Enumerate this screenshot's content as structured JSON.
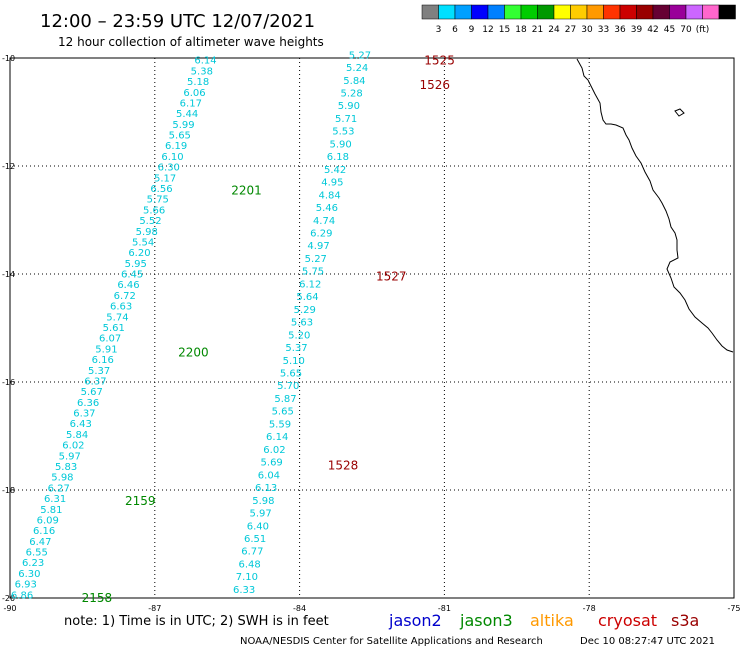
{
  "header": {
    "title": "12:00 – 23:59 UTC 12/07/2021",
    "subtitle": "12 hour collection of altimeter wave heights"
  },
  "legend": {
    "colors": [
      "#808080",
      "#00e0ff",
      "#00a0ff",
      "#0000ff",
      "#0080ff",
      "#33ff33",
      "#00cc00",
      "#009900",
      "#ffff00",
      "#ffcc00",
      "#ff9900",
      "#ff3300",
      "#cc0000",
      "#990000",
      "#660033",
      "#990099",
      "#cc66ff",
      "#ff66cc",
      "#000000"
    ],
    "labels": [
      "3",
      "6",
      "9",
      "12",
      "15",
      "18",
      "21",
      "24",
      "27",
      "30",
      "33",
      "36",
      "39",
      "42",
      "45",
      "70",
      "(ft)"
    ]
  },
  "footer": {
    "note": "note:  1) Time is in UTC;  2) SWH is in feet",
    "missions": [
      {
        "name": "jason2",
        "color": "#0000cc"
      },
      {
        "name": "jason3",
        "color": "#008800"
      },
      {
        "name": "altika",
        "color": "#ff9900"
      },
      {
        "name": "cryosat",
        "color": "#cc0000"
      },
      {
        "name": "s3a",
        "color": "#990000"
      }
    ],
    "credit": "NOAA/NESDIS Center for Satellite Applications and Research",
    "timestamp": "Dec 10 08:27:47 UTC 2021"
  },
  "chart_data": {
    "type": "scatter",
    "xlim": [
      -90,
      -75
    ],
    "ylim": [
      -20,
      -10
    ],
    "x_ticks": [
      "-90",
      "-87",
      "-84",
      "-81",
      "-78",
      "-75"
    ],
    "y_ticks": [
      "-10",
      "-12",
      "-14",
      "-16",
      "-18",
      "-20"
    ],
    "grid": true,
    "value_color": "#00c8d8",
    "tracks": [
      {
        "name": "jason3",
        "color": "#008800",
        "start": [
          -85.95,
          -10.05
        ],
        "end": [
          -89.75,
          -19.95
        ],
        "values": [
          "6.14",
          "5.38",
          "5.18",
          "6.06",
          "6.17",
          "5.44",
          "5.99",
          "5.65",
          "6.19",
          "6.10",
          "6.30",
          "5.17",
          "6.56",
          "5.75",
          "5.66",
          "5.52",
          "5.98",
          "5.54",
          "6.20",
          "5.95",
          "6.45",
          "6.46",
          "6.72",
          "6.63",
          "5.74",
          "5.61",
          "6.07",
          "5.91",
          "6.16",
          "5.37",
          "6.37",
          "5.67",
          "6.36",
          "6.37",
          "6.43",
          "5.84",
          "6.02",
          "5.97",
          "5.83",
          "5.98",
          "6.27",
          "6.31",
          "5.81",
          "6.09",
          "6.16",
          "6.47",
          "6.55",
          "6.23",
          "6.30",
          "6.93",
          "6.86"
        ],
        "time_labels": [
          {
            "label": "2201",
            "at": [
              -85.1,
              -12.45
            ]
          },
          {
            "label": "2200",
            "at": [
              -86.2,
              -15.45
            ]
          },
          {
            "label": "2159",
            "at": [
              -87.3,
              -18.2
            ]
          },
          {
            "label": "2158",
            "at": [
              -88.2,
              -20.0
            ]
          }
        ]
      },
      {
        "name": "s3a",
        "color": "#990000",
        "start": [
          -82.75,
          -9.95
        ],
        "end": [
          -85.15,
          -19.85
        ],
        "values": [
          "5.27",
          "5.24",
          "5.84",
          "5.28",
          "5.90",
          "5.71",
          "5.53",
          "5.90",
          "6.18",
          "5.42",
          "4.95",
          "4.84",
          "5.46",
          "4.74",
          "6.29",
          "4.97",
          "5.27",
          "5.75",
          "6.12",
          "5.64",
          "5.29",
          "5.63",
          "5.20",
          "5.37",
          "5.10",
          "5.65",
          "5.70",
          "5.87",
          "5.65",
          "5.59",
          "6.14",
          "6.02",
          "5.69",
          "6.04",
          "6.13",
          "5.98",
          "5.97",
          "6.40",
          "6.51",
          "6.77",
          "6.48",
          "7.10",
          "6.33"
        ],
        "time_labels": [
          {
            "label": "1525",
            "at": [
              -81.1,
              -10.05
            ]
          },
          {
            "label": "1526",
            "at": [
              -81.2,
              -10.5
            ]
          },
          {
            "label": "1527",
            "at": [
              -82.1,
              -14.05
            ]
          },
          {
            "label": "1528",
            "at": [
              -83.1,
              -17.55
            ]
          }
        ]
      }
    ]
  }
}
